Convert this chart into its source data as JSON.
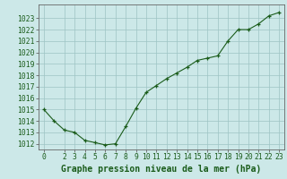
{
  "x": [
    0,
    1,
    2,
    3,
    4,
    5,
    6,
    7,
    8,
    9,
    10,
    11,
    12,
    13,
    14,
    15,
    16,
    17,
    18,
    19,
    20,
    21,
    22,
    23
  ],
  "y": [
    1015.0,
    1014.0,
    1013.2,
    1013.0,
    1012.3,
    1012.1,
    1011.9,
    1012.0,
    1013.5,
    1015.1,
    1016.5,
    1017.1,
    1017.7,
    1018.2,
    1018.7,
    1019.3,
    1019.5,
    1019.7,
    1021.0,
    1022.0,
    1022.0,
    1022.5,
    1023.2,
    1023.5
  ],
  "xlabel": "Graphe pression niveau de la mer (hPa)",
  "bg_color": "#cce8e8",
  "line_color": "#1a5c1a",
  "marker_color": "#1a5c1a",
  "grid_color": "#9dc4c4",
  "axis_color": "#666666",
  "text_color": "#1a5c1a",
  "ylim": [
    1011.5,
    1024.2
  ],
  "yticks": [
    1012,
    1013,
    1014,
    1015,
    1016,
    1017,
    1018,
    1019,
    1020,
    1021,
    1022,
    1023
  ],
  "xticks": [
    0,
    2,
    3,
    4,
    5,
    6,
    7,
    8,
    9,
    10,
    11,
    12,
    13,
    14,
    15,
    16,
    17,
    18,
    19,
    20,
    21,
    22,
    23
  ],
  "font_size": 5.8,
  "xlabel_font_size": 7.0
}
